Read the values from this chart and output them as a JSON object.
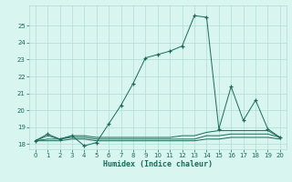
{
  "xlabel": "Humidex (Indice chaleur)",
  "x": [
    0,
    1,
    2,
    3,
    4,
    5,
    6,
    7,
    8,
    9,
    10,
    11,
    12,
    13,
    14,
    15,
    16,
    17,
    18,
    19,
    20
  ],
  "main_y": [
    18.2,
    18.6,
    18.3,
    18.5,
    17.9,
    18.1,
    19.2,
    20.3,
    21.6,
    23.1,
    23.3,
    23.5,
    23.8,
    25.6,
    25.5,
    18.9,
    21.4,
    19.4,
    20.6,
    18.9,
    18.4
  ],
  "flat_y1": [
    18.2,
    18.5,
    18.3,
    18.5,
    18.5,
    18.4,
    18.4,
    18.4,
    18.4,
    18.4,
    18.4,
    18.4,
    18.5,
    18.5,
    18.7,
    18.8,
    18.8,
    18.8,
    18.8,
    18.8,
    18.4
  ],
  "flat_y2": [
    18.2,
    18.3,
    18.3,
    18.4,
    18.4,
    18.3,
    18.3,
    18.3,
    18.3,
    18.3,
    18.3,
    18.3,
    18.3,
    18.3,
    18.5,
    18.5,
    18.6,
    18.6,
    18.6,
    18.6,
    18.4
  ],
  "flat_y3": [
    18.2,
    18.2,
    18.2,
    18.3,
    18.3,
    18.2,
    18.2,
    18.2,
    18.2,
    18.2,
    18.2,
    18.2,
    18.2,
    18.2,
    18.3,
    18.3,
    18.4,
    18.4,
    18.4,
    18.4,
    18.3
  ],
  "line_color": "#1a6b5a",
  "bg_color": "#d8f5ef",
  "grid_color": "#b0ddd4",
  "ylim": [
    17.7,
    26.2
  ],
  "xlim": [
    -0.5,
    20.5
  ],
  "yticks": [
    18,
    19,
    20,
    21,
    22,
    23,
    24,
    25
  ],
  "xticks": [
    0,
    1,
    2,
    3,
    4,
    5,
    6,
    7,
    8,
    9,
    10,
    11,
    12,
    13,
    14,
    15,
    16,
    17,
    18,
    19,
    20
  ]
}
